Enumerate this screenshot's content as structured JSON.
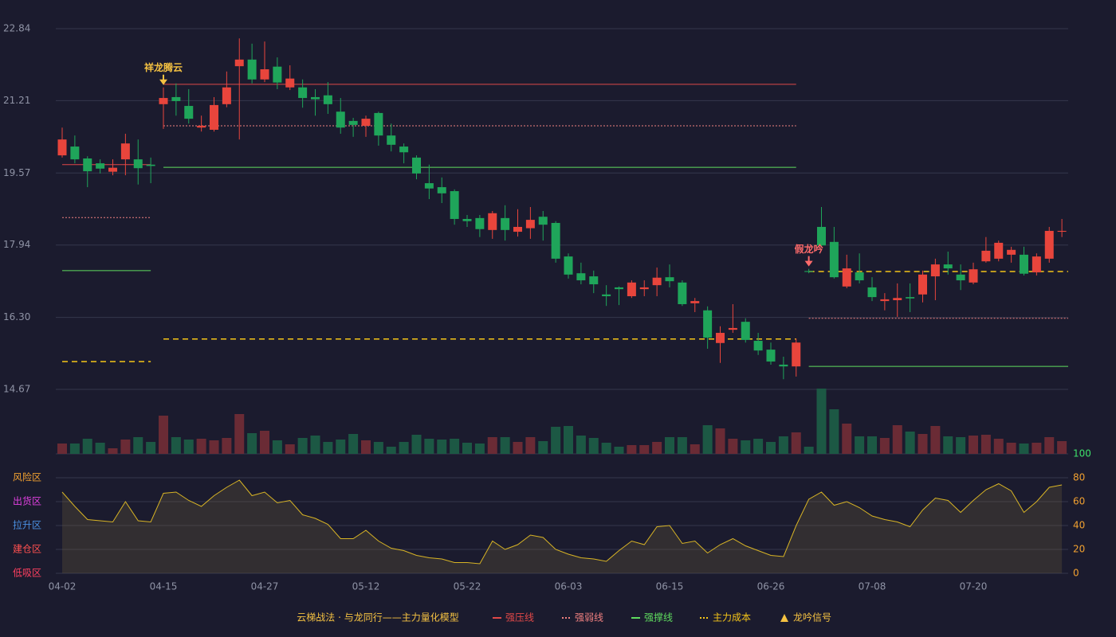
{
  "chart_data": {
    "type": "candlestick",
    "title": "云梯战法 · 与龙同行——主力量化模型",
    "categories": [
      "04-02",
      null,
      null,
      null,
      null,
      null,
      null,
      null,
      "04-15",
      null,
      null,
      null,
      null,
      null,
      null,
      null,
      "04-27",
      null,
      null,
      null,
      null,
      null,
      null,
      null,
      "05-12",
      null,
      null,
      null,
      null,
      null,
      null,
      null,
      "05-22",
      null,
      null,
      null,
      null,
      null,
      null,
      null,
      "06-03",
      null,
      null,
      null,
      null,
      null,
      null,
      null,
      "06-15",
      null,
      null,
      null,
      null,
      null,
      null,
      null,
      "06-26",
      null,
      null,
      null,
      null,
      null,
      null,
      null,
      "07-08",
      null,
      null,
      null,
      null,
      null,
      null,
      null,
      "07-20",
      null,
      null,
      null,
      null,
      null,
      null,
      null
    ],
    "open": [
      19.97,
      20.17,
      19.9,
      19.79,
      19.6,
      19.88,
      19.88,
      19.76,
      21.13,
      21.29,
      21.09,
      20.6,
      20.55,
      21.13,
      21.99,
      22.14,
      21.69,
      21.98,
      21.51,
      21.51,
      21.29,
      21.33,
      20.96,
      20.75,
      20.64,
      20.93,
      20.42,
      20.17,
      19.92,
      19.34,
      19.25,
      19.16,
      18.53,
      18.55,
      18.28,
      18.55,
      18.24,
      18.32,
      18.58,
      18.44,
      17.68,
      17.3,
      17.23,
      16.82,
      16.98,
      16.78,
      16.94,
      17.03,
      17.21,
      17.09,
      16.62,
      16.46,
      15.72,
      16.02,
      16.2,
      15.77,
      15.57,
      15.23,
      15.19,
      17.35,
      18.35,
      18.01,
      17.0,
      17.32,
      16.98,
      16.67,
      16.69,
      16.76,
      16.82,
      17.23,
      17.5,
      17.27,
      17.09,
      17.57,
      17.63,
      17.72,
      17.72,
      17.32,
      17.63,
      18.24
    ],
    "high": [
      20.6,
      20.42,
      19.95,
      19.88,
      19.88,
      20.46,
      20.33,
      19.92,
      21.51,
      21.6,
      21.47,
      20.87,
      21.29,
      21.87,
      22.62,
      22.5,
      22.55,
      22.19,
      22.01,
      21.69,
      21.47,
      21.63,
      21.27,
      20.82,
      20.87,
      20.96,
      20.69,
      20.24,
      19.97,
      19.76,
      19.47,
      19.2,
      18.62,
      18.62,
      18.71,
      18.84,
      18.75,
      18.8,
      18.71,
      18.48,
      17.75,
      17.54,
      17.36,
      17.03,
      17.0,
      17.14,
      17.14,
      17.43,
      17.5,
      17.14,
      16.74,
      16.55,
      16.1,
      16.6,
      16.28,
      15.95,
      15.73,
      15.41,
      15.82,
      17.4,
      18.8,
      18.35,
      17.72,
      17.75,
      17.21,
      16.85,
      17.07,
      17.07,
      17.36,
      17.63,
      17.79,
      17.5,
      17.54,
      18.12,
      18.04,
      17.9,
      17.9,
      17.75,
      18.35,
      18.53
    ],
    "low": [
      19.92,
      19.79,
      19.25,
      19.56,
      19.52,
      19.52,
      19.31,
      19.34,
      20.57,
      20.87,
      20.69,
      20.51,
      20.51,
      21.06,
      20.33,
      21.6,
      21.63,
      21.47,
      21.45,
      21.05,
      20.87,
      20.91,
      20.46,
      20.39,
      20.39,
      20.19,
      20.06,
      19.79,
      19.43,
      18.98,
      18.89,
      18.4,
      18.35,
      18.12,
      18.08,
      18.04,
      18.13,
      18.08,
      18.04,
      17.54,
      17.18,
      17.05,
      16.85,
      16.56,
      16.58,
      16.74,
      16.78,
      16.78,
      16.98,
      16.56,
      16.42,
      15.59,
      15.27,
      15.95,
      15.73,
      15.45,
      15.23,
      14.9,
      14.96,
      17.3,
      17.9,
      17.18,
      16.96,
      17.07,
      16.67,
      16.46,
      16.31,
      16.42,
      16.64,
      16.69,
      17.27,
      16.92,
      17.05,
      17.54,
      17.57,
      17.54,
      17.25,
      17.25,
      17.54,
      18.12
    ],
    "close": [
      20.33,
      19.88,
      19.61,
      19.67,
      19.69,
      20.24,
      19.68,
      19.73,
      21.27,
      21.2,
      20.8,
      20.64,
      21.11,
      21.51,
      22.14,
      21.69,
      21.92,
      21.62,
      21.71,
      21.27,
      21.24,
      21.13,
      20.6,
      20.66,
      20.8,
      20.42,
      20.21,
      20.04,
      19.56,
      19.22,
      19.11,
      18.53,
      18.48,
      18.3,
      18.66,
      18.28,
      18.35,
      18.51,
      18.4,
      17.63,
      17.27,
      17.14,
      17.05,
      16.78,
      16.94,
      17.09,
      16.98,
      17.2,
      17.12,
      16.6,
      16.67,
      15.84,
      15.95,
      16.06,
      15.79,
      15.55,
      15.3,
      15.19,
      15.73,
      17.33,
      17.93,
      17.21,
      17.41,
      17.14,
      16.76,
      16.71,
      16.74,
      16.73,
      17.27,
      17.5,
      17.41,
      17.14,
      17.39,
      17.81,
      17.99,
      17.83,
      17.29,
      17.68,
      18.26,
      18.26
    ],
    "up_color": "#e8453c",
    "down_color": "#1fa55a",
    "ylim": [
      14.67,
      22.84
    ],
    "yticks": [
      14.67,
      {
        "value": 16.3,
        "label": "16.30"
      },
      17.94,
      19.57,
      21.21,
      22.84
    ],
    "grid": true,
    "levels": [
      {
        "name": "强压线",
        "color": "#e04848",
        "style": "solid",
        "segments": [
          {
            "start": 0,
            "end": 7,
            "value": 19.76
          },
          {
            "start": 8,
            "end": 58,
            "value": 21.58
          }
        ]
      },
      {
        "name": "强弱线",
        "color": "#f08080",
        "style": "dotted",
        "segments": [
          {
            "start": 0,
            "end": 7,
            "value": 18.56
          },
          {
            "start": 8,
            "end": 58,
            "value": 20.64
          },
          {
            "start": 59,
            "end": 79,
            "value": 16.28
          }
        ]
      },
      {
        "name": "强撑线",
        "color": "#5fdc5f",
        "style": "solid",
        "segments": [
          {
            "start": 0,
            "end": 7,
            "value": 17.36
          },
          {
            "start": 8,
            "end": 58,
            "value": 19.7
          },
          {
            "start": 59,
            "end": 79,
            "value": 15.19
          }
        ]
      },
      {
        "name": "主力成本",
        "color": "#f5c518",
        "style": "dashed",
        "segments": [
          {
            "start": 0,
            "end": 7,
            "value": 15.3
          },
          {
            "start": 8,
            "end": 58,
            "value": 15.81
          },
          {
            "start": 59,
            "end": 79,
            "value": 17.34
          }
        ]
      }
    ],
    "annotations": [
      {
        "text": "祥龙腾云",
        "index": 8,
        "color": "#f5c242"
      },
      {
        "text": "假龙吟",
        "index": 59,
        "color": "#ff6b6b"
      }
    ],
    "signal_legend": {
      "name": "龙吟信号",
      "color": "#f5c242"
    },
    "volume": {
      "values": [
        13,
        13,
        19,
        14,
        7,
        18,
        21,
        15,
        48,
        21,
        18,
        19,
        17,
        20,
        50,
        26,
        29,
        17,
        12,
        20,
        23,
        15,
        18,
        25,
        17,
        15,
        9,
        15,
        24,
        19,
        18,
        19,
        14,
        13,
        21,
        21,
        15,
        21,
        16,
        34,
        35,
        23,
        20,
        14,
        9,
        11,
        11,
        15,
        21,
        21,
        12,
        36,
        32,
        19,
        17,
        19,
        15,
        22,
        27,
        9,
        82,
        56,
        38,
        22,
        22,
        20,
        36,
        28,
        25,
        35,
        22,
        21,
        23,
        24,
        19,
        14,
        13,
        14,
        21,
        16
      ],
      "up_color": "#6a2b35",
      "down_color": "#1c5844"
    },
    "oscillator": {
      "type": "area",
      "values": [
        68,
        56,
        45,
        44,
        43,
        60,
        44,
        43,
        67,
        68,
        61,
        56,
        65,
        72,
        78,
        65,
        68,
        59,
        61,
        49,
        46,
        41,
        29,
        29,
        36,
        27,
        21,
        19,
        15,
        13,
        12,
        9,
        9,
        8,
        27,
        20,
        24,
        32,
        30,
        20,
        16,
        13,
        12,
        10,
        19,
        27,
        24,
        39,
        40,
        25,
        27,
        17,
        24,
        29,
        23,
        19,
        15,
        14,
        40,
        62,
        68,
        57,
        60,
        55,
        48,
        45,
        43,
        39,
        53,
        63,
        61,
        51,
        61,
        70,
        75,
        69,
        51,
        60,
        72,
        74
      ],
      "color": "#d8b425",
      "y2lim": [
        0,
        100
      ],
      "y2ticks": [
        0,
        20,
        40,
        60,
        80,
        100
      ],
      "y2tick_colors": [
        "#f0a030",
        "#f0a030",
        "#f0a030",
        "#f0a030",
        "#f0a030",
        "#3ee06a"
      ],
      "zones": [
        {
          "label": "风险区",
          "value": 80,
          "color": "#f0a030"
        },
        {
          "label": "出货区",
          "value": 60,
          "color": "#e040e0"
        },
        {
          "label": "拉升区",
          "value": 40,
          "color": "#4a90e2"
        },
        {
          "label": "建仓区",
          "value": 20,
          "color": "#ff5050"
        },
        {
          "label": "低吸区",
          "value": 0,
          "color": "#ff4060"
        }
      ]
    }
  }
}
